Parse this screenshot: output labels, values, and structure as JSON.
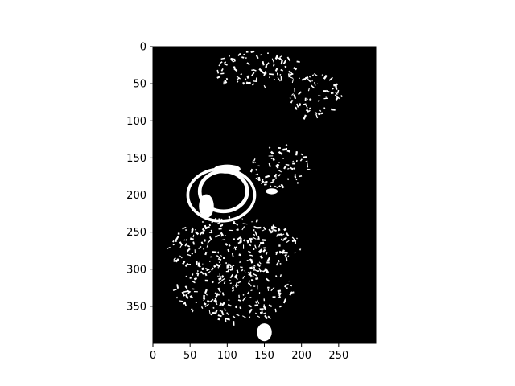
{
  "chart_data": {
    "type": "heatmap",
    "title": "",
    "xlabel": "",
    "ylabel": "",
    "colormap": "binary (black = 0, white = 1)",
    "background_color": "#000000",
    "foreground_color": "#ffffff",
    "xlim": [
      0,
      300
    ],
    "ylim": [
      400,
      0
    ],
    "y_axis_inverted": true,
    "grid": false,
    "x_ticks": [
      0,
      50,
      100,
      150,
      200,
      250
    ],
    "x_tick_labels": [
      "0",
      "50",
      "100",
      "150",
      "200",
      "250"
    ],
    "y_ticks": [
      0,
      50,
      100,
      150,
      200,
      250,
      300,
      350
    ],
    "y_tick_labels": [
      "0",
      "50",
      "100",
      "150",
      "200",
      "250",
      "300",
      "350"
    ],
    "white_regions": [
      {
        "name": "eye-ring",
        "kind": "ring",
        "cx": 95,
        "cy": 195,
        "rx": 32,
        "ry": 27,
        "width": 5
      },
      {
        "name": "outer-ring",
        "kind": "ring",
        "cx": 92,
        "cy": 200,
        "rx": 45,
        "ry": 35,
        "width": 4
      },
      {
        "name": "blob-left",
        "kind": "blob",
        "cx": 72,
        "cy": 215,
        "rx": 10,
        "ry": 16
      },
      {
        "name": "blob-upper",
        "kind": "blob",
        "cx": 100,
        "cy": 165,
        "rx": 18,
        "ry": 6
      },
      {
        "name": "blob-bottom",
        "kind": "blob",
        "cx": 150,
        "cy": 385,
        "rx": 10,
        "ry": 12
      },
      {
        "name": "blob-right",
        "kind": "blob",
        "cx": 160,
        "cy": 195,
        "rx": 8,
        "ry": 4
      },
      {
        "name": "cluster-ne",
        "kind": "speckle",
        "cx": 220,
        "cy": 65,
        "rx": 35,
        "ry": 30
      },
      {
        "name": "speckle-band",
        "kind": "speckle",
        "cx": 110,
        "cy": 270,
        "rx": 90,
        "ry": 40
      },
      {
        "name": "speckle-lower",
        "kind": "speckle",
        "cx": 110,
        "cy": 330,
        "rx": 80,
        "ry": 40
      },
      {
        "name": "speckle-top",
        "kind": "speckle",
        "cx": 140,
        "cy": 30,
        "rx": 60,
        "ry": 25
      },
      {
        "name": "speckle-mid",
        "kind": "speckle",
        "cx": 170,
        "cy": 160,
        "rx": 40,
        "ry": 30
      }
    ],
    "dark_regions": [
      {
        "name": "eye-center",
        "cx": 98,
        "cy": 195,
        "rx": 15,
        "ry": 14
      }
    ]
  }
}
